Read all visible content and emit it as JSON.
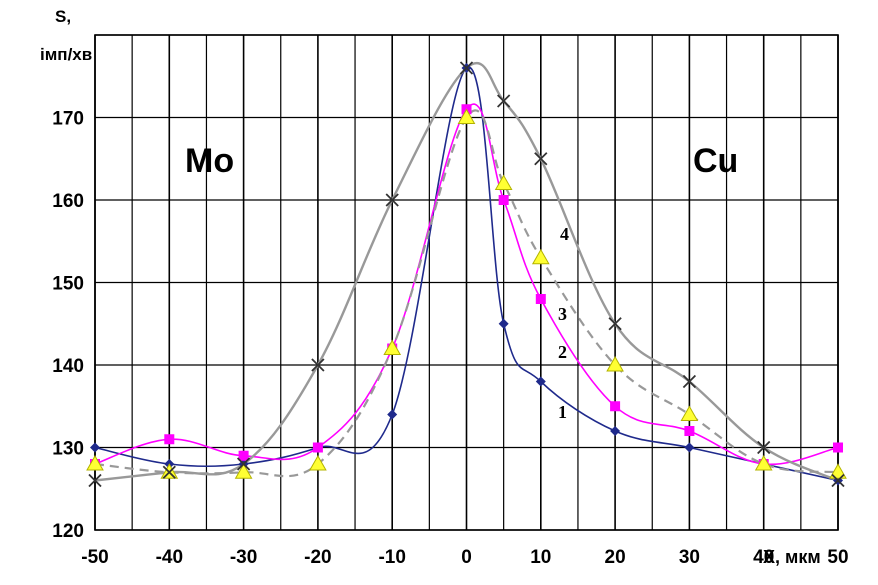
{
  "chart_data": {
    "type": "line",
    "xlabel": "X, мкм",
    "ylabel": [
      "S,",
      "імп/хв"
    ],
    "xlim": [
      -50,
      50
    ],
    "ylim": [
      120,
      175
    ],
    "x_ticks": [
      -50,
      -40,
      -30,
      -20,
      -10,
      0,
      10,
      20,
      30,
      40,
      50
    ],
    "y_ticks": [
      120,
      130,
      140,
      150,
      160,
      170
    ],
    "x_grid_step": 5,
    "y_grid_step": 10,
    "grid": true,
    "annotations": [
      "Mo",
      "Cu"
    ],
    "series": [
      {
        "name": "1",
        "color": "#1f2a8c",
        "marker": "diamond",
        "dashed": false,
        "x": [
          -50,
          -40,
          -30,
          -20,
          -10,
          0,
          5,
          10,
          20,
          30,
          40,
          50
        ],
        "y": [
          130,
          128,
          128,
          130,
          134,
          176,
          145,
          138,
          132,
          130,
          128,
          126
        ]
      },
      {
        "name": "2",
        "color": "#ff00ff",
        "marker": "square",
        "dashed": false,
        "x": [
          -50,
          -40,
          -30,
          -20,
          -10,
          0,
          5,
          10,
          20,
          30,
          40,
          50
        ],
        "y": [
          128,
          131,
          129,
          130,
          142,
          171,
          160,
          148,
          135,
          132,
          128,
          130
        ]
      },
      {
        "name": "3",
        "color": "#999999",
        "marker": "triangle",
        "dashed": true,
        "x": [
          -50,
          -40,
          -30,
          -20,
          -10,
          0,
          5,
          10,
          20,
          30,
          40,
          50
        ],
        "y": [
          128,
          127,
          127,
          128,
          142,
          170,
          162,
          153,
          140,
          134,
          128,
          127
        ]
      },
      {
        "name": "4",
        "color": "#999999",
        "marker": "x",
        "dashed": false,
        "x": [
          -50,
          -40,
          -30,
          -20,
          -10,
          0,
          5,
          10,
          20,
          30,
          40,
          50
        ],
        "y": [
          126,
          127,
          128,
          140,
          160,
          176,
          172,
          165,
          145,
          138,
          130,
          126
        ]
      }
    ]
  }
}
